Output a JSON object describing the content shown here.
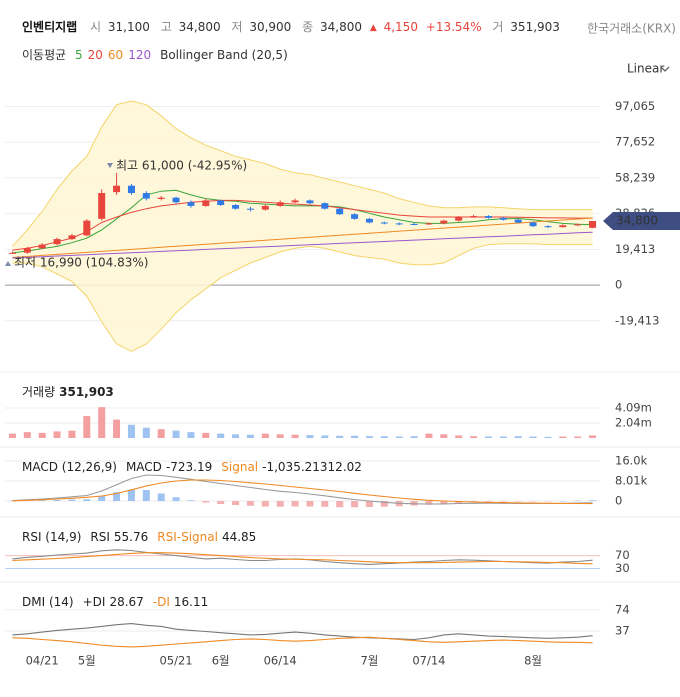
{
  "header": {
    "name": "인벤티지랩",
    "open_label": "시",
    "open": "31,100",
    "high_label": "고",
    "high": "34,800",
    "low_label": "저",
    "low": "30,900",
    "close_label": "종",
    "close": "34,800",
    "change_arrow": "▲",
    "change": "4,150",
    "change_pct": "+13.54%",
    "volume_label": "거",
    "volume": "351,903",
    "exchange": "한국거래소(KRX)",
    "scale": "Linear"
  },
  "chart_data": [
    {
      "type": "candlestick",
      "categories": [
        null,
        null,
        "04/21",
        null,
        null,
        "5월",
        null,
        null,
        null,
        null,
        null,
        "05/21",
        null,
        null,
        "6월",
        null,
        null,
        null,
        "06/14",
        null,
        null,
        null,
        null,
        null,
        "7월",
        null,
        null,
        null,
        "07/14",
        null,
        null,
        null,
        null,
        null,
        null,
        "8월",
        null,
        null,
        null,
        null
      ],
      "open": [
        17000,
        17600,
        20000,
        22200,
        25000,
        27000,
        36000,
        50500,
        54000,
        50000,
        46800,
        47500,
        45000,
        43000,
        46000,
        43500,
        41500,
        41000,
        43000,
        45000,
        46000,
        44500,
        41500,
        38500,
        36000,
        34000,
        33500,
        33200,
        33000,
        33500,
        35000,
        37000,
        37500,
        36500,
        35500,
        34000,
        32000,
        31500,
        32500,
        31100
      ],
      "high": [
        18300,
        20800,
        22800,
        25800,
        27800,
        35800,
        52000,
        61000,
        55000,
        51000,
        48500,
        48000,
        46000,
        47000,
        46500,
        44000,
        42500,
        44000,
        46000,
        47000,
        46500,
        45000,
        42000,
        39000,
        36500,
        34500,
        34000,
        33800,
        34000,
        35500,
        37500,
        38200,
        38000,
        37000,
        36000,
        34500,
        32500,
        33000,
        33500,
        34800
      ],
      "low": [
        16990,
        17000,
        19500,
        21600,
        24400,
        26500,
        35000,
        49000,
        49000,
        46000,
        46000,
        44000,
        42000,
        42500,
        43000,
        41000,
        40000,
        40500,
        42500,
        44500,
        44000,
        41000,
        38000,
        35500,
        33500,
        33000,
        32500,
        32500,
        32600,
        33000,
        34500,
        36500,
        36000,
        35000,
        33500,
        31500,
        31000,
        31200,
        32000,
        30900
      ],
      "close": [
        17500,
        20000,
        22000,
        25000,
        27000,
        35000,
        50000,
        54000,
        50000,
        47000,
        47500,
        45000,
        43000,
        46000,
        43500,
        41500,
        41000,
        43000,
        45000,
        46000,
        44500,
        41500,
        38500,
        36000,
        34000,
        33500,
        33000,
        33000,
        33500,
        35000,
        37000,
        37500,
        36500,
        35500,
        34000,
        32000,
        31500,
        32500,
        33000,
        34800
      ],
      "up_color": "#e8453c",
      "down_color": "#2f7ae5",
      "ylim": [
        -38000,
        106000
      ],
      "yticks": [
        {
          "value": 97065,
          "label": "97,065"
        },
        {
          "value": 77652,
          "label": "77,652"
        },
        {
          "value": 58239,
          "label": "58,239"
        },
        {
          "value": 38826,
          "label": "38,826"
        },
        {
          "value": 19413,
          "label": "19,413"
        },
        0,
        {
          "value": -19413,
          "label": "-19,413"
        }
      ],
      "legend_title": "이동평균",
      "series": [
        {
          "name": "5",
          "color": "#3aa53a",
          "values": [
            17500,
            18500,
            19800,
            21000,
            23000,
            25500,
            30000,
            36000,
            42000,
            49000,
            51000,
            51500,
            49000,
            47000,
            46000,
            45500,
            44500,
            44000,
            43500,
            43000,
            43000,
            43000,
            42500,
            41000,
            39000,
            37000,
            35500,
            34000,
            33500,
            33500,
            34000,
            34500,
            35500,
            36000,
            36200,
            35500,
            34500,
            33500,
            33000,
            32800
          ]
        },
        {
          "name": "20",
          "color": "#e8453c",
          "values": [
            19000,
            20000,
            21500,
            23500,
            25500,
            29000,
            34000,
            37000,
            39500,
            41500,
            43000,
            44000,
            45000,
            45500,
            46000,
            46000,
            45500,
            45000,
            44500,
            44000,
            43500,
            43000,
            42000,
            41000,
            40000,
            39000,
            38000,
            37500,
            37000,
            37000,
            37000,
            37000,
            37000,
            37000,
            36800,
            36700,
            36500,
            36500,
            36400,
            36400
          ]
        },
        {
          "name": "60",
          "color": "#f08a24",
          "values": [
            15000,
            15550,
            16100,
            16650,
            17200,
            17750,
            18300,
            18850,
            19400,
            19950,
            20500,
            21050,
            21600,
            22150,
            22700,
            23250,
            23800,
            24350,
            24900,
            25450,
            26000,
            26550,
            27100,
            27650,
            28200,
            28750,
            29300,
            29850,
            30400,
            30950,
            31500,
            32050,
            32600,
            33150,
            33700,
            34250,
            34800,
            35350,
            35900,
            36450
          ]
        },
        {
          "name": "120",
          "color": "#9b59d0",
          "values": [
            14700,
            15060,
            15420,
            15780,
            16140,
            16500,
            16860,
            17220,
            17580,
            17940,
            18300,
            18660,
            19020,
            19380,
            19740,
            20100,
            20460,
            20820,
            21180,
            21540,
            21900,
            22260,
            22620,
            22980,
            23340,
            23700,
            24060,
            24420,
            24780,
            25140,
            25500,
            25860,
            26220,
            26580,
            26940,
            27300,
            27660,
            28020,
            28380,
            28740
          ]
        }
      ],
      "bands": {
        "name": "Bollinger Band (20,5)",
        "color": "#f3d46a",
        "fill": "#fff6d2",
        "upper": [
          21000,
          30000,
          40000,
          52000,
          62000,
          70000,
          86000,
          98000,
          100000,
          98000,
          92000,
          85000,
          80000,
          76000,
          73000,
          70000,
          68000,
          66000,
          63000,
          61000,
          60000,
          58000,
          56000,
          54000,
          52000,
          50000,
          47000,
          45000,
          43000,
          42000,
          42000,
          42500,
          42500,
          42000,
          41500,
          41000,
          41000,
          41000,
          41000,
          41000
        ],
        "lower": [
          12000,
          12000,
          10000,
          6000,
          2000,
          -6000,
          -20000,
          -32000,
          -36000,
          -32000,
          -24000,
          -15000,
          -8000,
          -2000,
          4000,
          8000,
          12000,
          15000,
          18000,
          20000,
          21000,
          20000,
          18000,
          16000,
          15000,
          14000,
          12000,
          11000,
          11000,
          12000,
          16000,
          20000,
          22000,
          22500,
          22500,
          22500,
          22000,
          22000,
          22000,
          22000
        ]
      },
      "annotations": [
        {
          "text": "최고 61,000 (-42.95%)"
        },
        {
          "text": "최저 16,990 (104.83%)"
        }
      ],
      "price_tag": {
        "value": 34800,
        "label": "34,800",
        "color": "#3e4d82"
      }
    },
    {
      "type": "bar",
      "title": "거래량",
      "value_text": "351,903",
      "up_color": "#f4a0a0",
      "down_color": "#9ec3f0",
      "values": [
        600000,
        800000,
        700000,
        900000,
        1000000,
        3000000,
        4200000,
        2500000,
        1800000,
        1400000,
        1200000,
        1000000,
        800000,
        700000,
        600000,
        500000,
        450000,
        600000,
        500000,
        450000,
        400000,
        350000,
        300000,
        300000,
        250000,
        250000,
        200000,
        250000,
        600000,
        500000,
        350000,
        250000,
        200000,
        200000,
        250000,
        200000,
        150000,
        200000,
        200000,
        351903
      ],
      "ylim": [
        0,
        7900000
      ],
      "yticks": [
        {
          "value": 4090000,
          "label": "4.09m"
        },
        {
          "value": 2040000,
          "label": "2.04m"
        }
      ]
    },
    {
      "type": "line",
      "title": "MACD (12,26,9)",
      "ylim": [
        -3600,
        18400
      ],
      "yticks": [
        {
          "value": 16000,
          "label": "16.0k"
        },
        {
          "value": 8010,
          "label": "8.01k"
        },
        0
      ],
      "series": [
        {
          "name": "MACD",
          "color": "#9a9a9a",
          "label_color": "#222222",
          "legend_value": "-723.19",
          "values": [
            200,
            500,
            800,
            1200,
            1700,
            2200,
            4000,
            6500,
            9000,
            10400,
            10200,
            9500,
            8700,
            7800,
            7000,
            6200,
            5400,
            4600,
            3900,
            3400,
            2800,
            2100,
            1300,
            600,
            0,
            -500,
            -900,
            -1100,
            -1200,
            -1150,
            -1000,
            -900,
            -850,
            -900,
            -950,
            -1000,
            -1000,
            -950,
            -850,
            -723.19
          ]
        },
        {
          "name": "Signal",
          "color": "#f08a24",
          "label_color": "#f08a24",
          "legend_value": "-1,035.21312.02",
          "values": [
            100,
            300,
            500,
            800,
            1100,
            1500,
            2000,
            3000,
            4500,
            6000,
            7200,
            8000,
            8400,
            8400,
            8200,
            7800,
            7300,
            6800,
            6200,
            5600,
            5000,
            4400,
            3800,
            3100,
            2400,
            1800,
            1200,
            700,
            300,
            0,
            -200,
            -400,
            -550,
            -650,
            -750,
            -850,
            -900,
            -950,
            -1000,
            -1035.21312
          ]
        }
      ],
      "histogram": {
        "up_color": "#9ec3f0",
        "down_color": "#f4b0b0",
        "values": [
          100,
          200,
          300,
          400,
          600,
          700,
          2000,
          3500,
          4500,
          4400,
          3000,
          1500,
          300,
          -600,
          -1200,
          -1600,
          -1900,
          -2200,
          -2300,
          -2200,
          -2200,
          -2300,
          -2500,
          -2500,
          -2400,
          -2300,
          -2100,
          -1800,
          -1500,
          -1150,
          -800,
          -500,
          -300,
          -250,
          -200,
          -150,
          -100,
          0,
          150,
          312
        ]
      }
    },
    {
      "type": "line",
      "title": "RSI (14,9)",
      "ylim": [
        10,
        165
      ],
      "yticks": [
        70,
        30
      ],
      "ytick_colors": [
        "#e8453c",
        "#2f7ae5"
      ],
      "series": [
        {
          "name": "RSI",
          "color": "#8a8a8a",
          "label_color": "#222222",
          "legend_value": "55.76",
          "values": [
            60,
            65,
            68,
            72,
            75,
            78,
            85,
            88,
            86,
            80,
            75,
            70,
            65,
            60,
            62,
            58,
            55,
            55,
            58,
            60,
            57,
            52,
            48,
            45,
            43,
            45,
            47,
            50,
            52,
            55,
            57,
            56,
            54,
            52,
            50,
            48,
            47,
            50,
            52,
            55.76
          ]
        },
        {
          "name": "RSI-Signal",
          "color": "#f08a24",
          "label_color": "#f08a24",
          "legend_value": "44.85",
          "values": [
            55,
            57,
            59,
            61,
            64,
            67,
            70,
            74,
            77,
            79,
            79,
            78,
            76,
            73,
            70,
            67,
            64,
            62,
            60,
            59,
            58,
            57,
            55,
            53,
            51,
            49,
            48,
            48,
            48,
            49,
            50,
            51,
            52,
            52,
            51,
            50,
            49,
            48,
            46,
            44.85
          ]
        }
      ]
    },
    {
      "type": "line",
      "title": "DMI (14)",
      "ylim": [
        0,
        109
      ],
      "yticks": [
        74,
        37
      ],
      "series": [
        {
          "name": "+DI",
          "color": "#777777",
          "label_color": "#222222",
          "legend_value": "28.67",
          "values": [
            30,
            32,
            35,
            38,
            40,
            42,
            45,
            48,
            50,
            47,
            45,
            40,
            38,
            36,
            34,
            32,
            30,
            31,
            33,
            35,
            33,
            30,
            28,
            26,
            25,
            24,
            23,
            22,
            25,
            30,
            32,
            30,
            28,
            27,
            26,
            25,
            24,
            25,
            26,
            28.67
          ]
        },
        {
          "name": "-DI",
          "color": "#f08a24",
          "label_color": "#f08a24",
          "legend_value": "16.11",
          "values": [
            25,
            24,
            22,
            20,
            18,
            15,
            12,
            10,
            9,
            10,
            12,
            14,
            16,
            18,
            20,
            22,
            23,
            22,
            20,
            19,
            20,
            22,
            24,
            25,
            26,
            24,
            22,
            20,
            18,
            17,
            18,
            19,
            20,
            21,
            20,
            19,
            18,
            17,
            17,
            16.11
          ]
        }
      ]
    }
  ]
}
